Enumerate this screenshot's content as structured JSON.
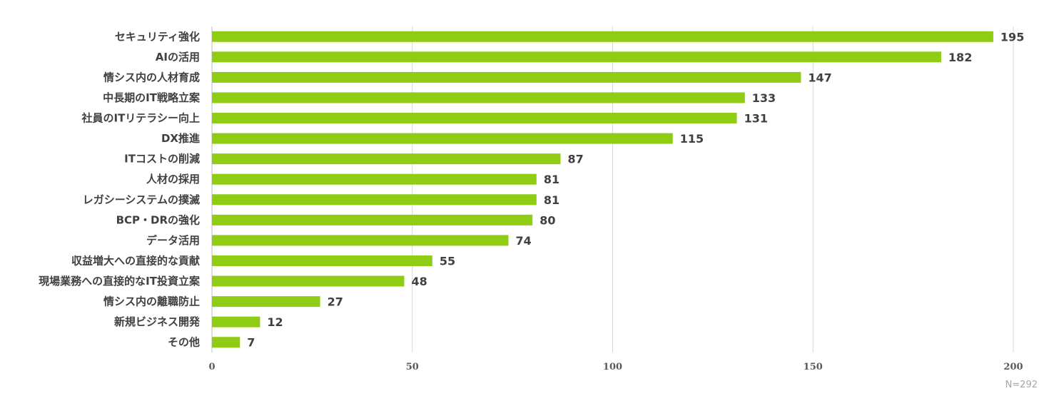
{
  "chart_data": {
    "type": "bar",
    "orientation": "horizontal",
    "categories": [
      "セキュリティ強化",
      "AIの活用",
      "情シス内の人材育成",
      "中長期のIT戦略立案",
      "社員のITリテラシー向上",
      "DX推進",
      "ITコストの削減",
      "人材の採用",
      "レガシーシステムの撲滅",
      "BCP・DRの強化",
      "データ活用",
      "収益増大への直接的な貢献",
      "現場業務への直接的なIT投資立案",
      "情シス内の離職防止",
      "新規ビジネス開発",
      "その他"
    ],
    "values": [
      195,
      182,
      147,
      133,
      131,
      115,
      87,
      81,
      81,
      80,
      74,
      55,
      48,
      27,
      12,
      7
    ],
    "xlim": [
      0,
      200
    ],
    "xticks": [
      0,
      50,
      100,
      150,
      200
    ],
    "grid": true,
    "data_labels": true,
    "bar_color": "#8fcc14",
    "note": "N=292"
  }
}
